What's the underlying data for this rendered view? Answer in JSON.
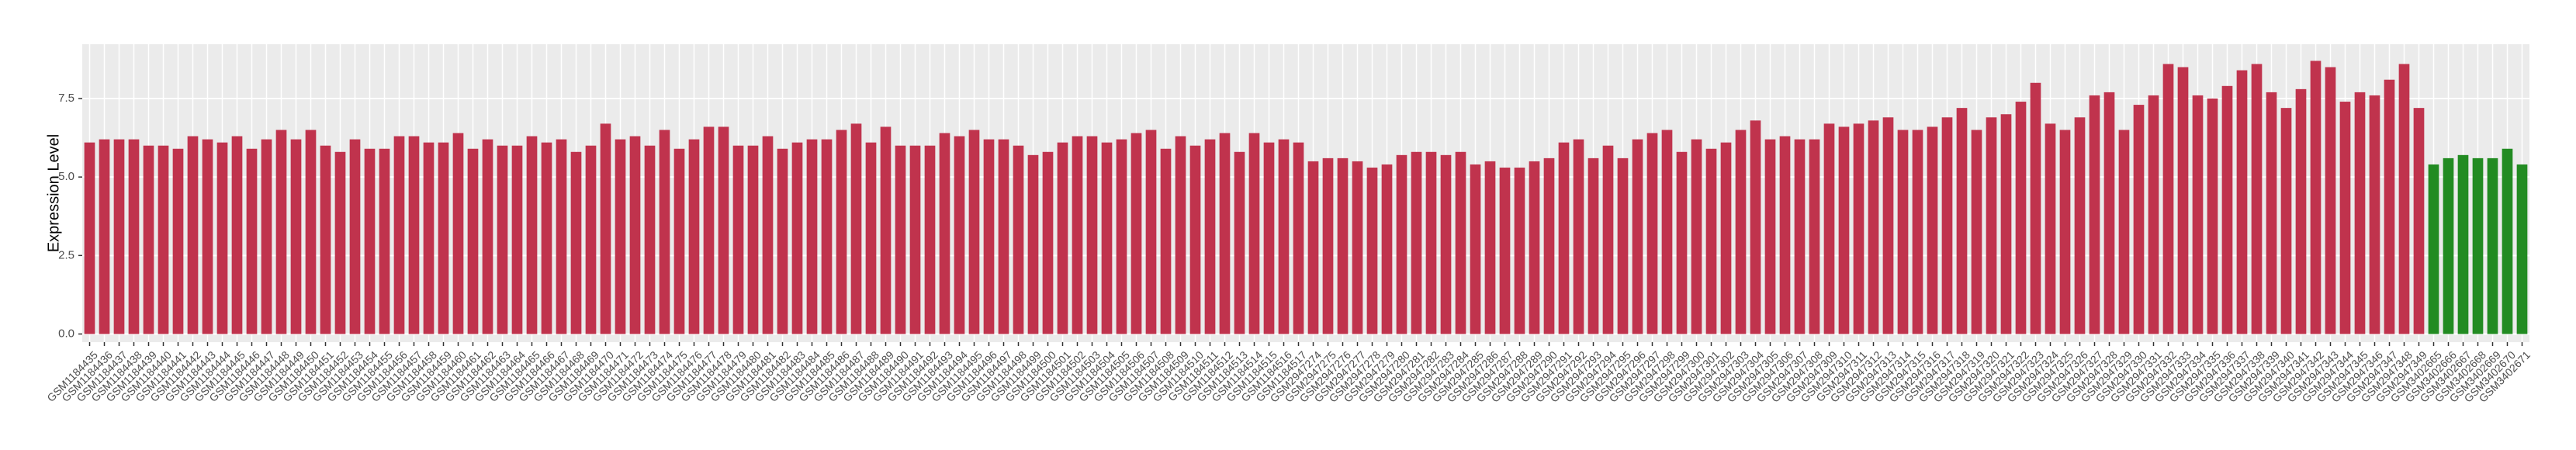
{
  "chart_data": {
    "type": "bar",
    "y_label": "Expression Level",
    "categories": [
      "GSM1184435",
      "GSM1184436",
      "GSM1184437",
      "GSM1184438",
      "GSM1184439",
      "GSM1184440",
      "GSM1184441",
      "GSM1184442",
      "GSM1184443",
      "GSM1184444",
      "GSM1184445",
      "GSM1184446",
      "GSM1184447",
      "GSM1184448",
      "GSM1184449",
      "GSM1184450",
      "GSM1184451",
      "GSM1184452",
      "GSM1184453",
      "GSM1184454",
      "GSM1184455",
      "GSM1184456",
      "GSM1184457",
      "GSM1184458",
      "GSM1184459",
      "GSM1184460",
      "GSM1184461",
      "GSM1184462",
      "GSM1184463",
      "GSM1184464",
      "GSM1184465",
      "GSM1184466",
      "GSM1184467",
      "GSM1184468",
      "GSM1184469",
      "GSM1184470",
      "GSM1184471",
      "GSM1184472",
      "GSM1184473",
      "GSM1184474",
      "GSM1184475",
      "GSM1184476",
      "GSM1184477",
      "GSM1184478",
      "GSM1184479",
      "GSM1184480",
      "GSM1184481",
      "GSM1184482",
      "GSM1184483",
      "GSM1184484",
      "GSM1184485",
      "GSM1184486",
      "GSM1184487",
      "GSM1184488",
      "GSM1184489",
      "GSM1184490",
      "GSM1184491",
      "GSM1184492",
      "GSM1184493",
      "GSM1184494",
      "GSM1184495",
      "GSM1184496",
      "GSM1184497",
      "GSM1184498",
      "GSM1184499",
      "GSM1184500",
      "GSM1184501",
      "GSM1184502",
      "GSM1184503",
      "GSM1184504",
      "GSM1184505",
      "GSM1184506",
      "GSM1184507",
      "GSM1184508",
      "GSM1184509",
      "GSM1184510",
      "GSM1184511",
      "GSM1184512",
      "GSM1184513",
      "GSM1184514",
      "GSM1184515",
      "GSM1184516",
      "GSM1184517",
      "GSM2947274",
      "GSM2947275",
      "GSM2947276",
      "GSM2947277",
      "GSM2947278",
      "GSM2947279",
      "GSM2947280",
      "GSM2947281",
      "GSM2947282",
      "GSM2947283",
      "GSM2947284",
      "GSM2947285",
      "GSM2947286",
      "GSM2947287",
      "GSM2947288",
      "GSM2947289",
      "GSM2947290",
      "GSM2947291",
      "GSM2947292",
      "GSM2947293",
      "GSM2947294",
      "GSM2947295",
      "GSM2947296",
      "GSM2947297",
      "GSM2947298",
      "GSM2947299",
      "GSM2947300",
      "GSM2947301",
      "GSM2947302",
      "GSM2947303",
      "GSM2947304",
      "GSM2947305",
      "GSM2947306",
      "GSM2947307",
      "GSM2947308",
      "GSM2947309",
      "GSM2947310",
      "GSM2947311",
      "GSM2947312",
      "GSM2947313",
      "GSM2947314",
      "GSM2947315",
      "GSM2947316",
      "GSM2947317",
      "GSM2947318",
      "GSM2947319",
      "GSM2947320",
      "GSM2947321",
      "GSM2947322",
      "GSM2947323",
      "GSM2947324",
      "GSM2947325",
      "GSM2947326",
      "GSM2947327",
      "GSM2947328",
      "GSM2947329",
      "GSM2947330",
      "GSM2947331",
      "GSM2947332",
      "GSM2947333",
      "GSM2947334",
      "GSM2947335",
      "GSM2947336",
      "GSM2947337",
      "GSM2947338",
      "GSM2947339",
      "GSM2947340",
      "GSM2947341",
      "GSM2947342",
      "GSM2947343",
      "GSM2947344",
      "GSM2947345",
      "GSM2947346",
      "GSM2947347",
      "GSM2947348",
      "GSM2947349",
      "GSM3402665",
      "GSM3402666",
      "GSM3402667",
      "GSM3402668",
      "GSM3402669",
      "GSM3402670",
      "GSM3402671"
    ],
    "values": [
      6.1,
      6.2,
      6.2,
      6.2,
      6.0,
      6.0,
      5.9,
      6.3,
      6.2,
      6.1,
      6.3,
      5.9,
      6.2,
      6.5,
      6.2,
      6.5,
      6.0,
      5.8,
      6.2,
      5.9,
      5.9,
      6.3,
      6.3,
      6.1,
      6.1,
      6.4,
      5.9,
      6.2,
      6.0,
      6.0,
      6.3,
      6.1,
      6.2,
      5.8,
      6.0,
      6.7,
      6.2,
      6.3,
      6.0,
      6.5,
      5.9,
      6.2,
      6.6,
      6.6,
      6.0,
      6.0,
      6.3,
      5.9,
      6.1,
      6.2,
      6.2,
      6.5,
      6.7,
      6.1,
      6.6,
      6.0,
      6.0,
      6.0,
      6.4,
      6.3,
      6.5,
      6.2,
      6.2,
      6.0,
      5.7,
      5.8,
      6.1,
      6.3,
      6.3,
      6.1,
      6.2,
      6.4,
      6.5,
      5.9,
      6.3,
      6.0,
      6.2,
      6.4,
      5.8,
      6.4,
      6.1,
      6.2,
      6.1,
      5.5,
      5.6,
      5.6,
      5.5,
      5.3,
      5.4,
      5.7,
      5.8,
      5.8,
      5.7,
      5.8,
      5.4,
      5.5,
      5.3,
      5.3,
      5.5,
      5.6,
      6.1,
      6.2,
      5.6,
      6.0,
      5.6,
      6.2,
      6.4,
      6.5,
      5.8,
      6.2,
      5.9,
      6.1,
      6.5,
      6.8,
      6.2,
      6.3,
      6.2,
      6.2,
      6.7,
      6.6,
      6.7,
      6.8,
      6.9,
      6.5,
      6.5,
      6.6,
      6.9,
      7.2,
      6.5,
      6.9,
      7.0,
      7.4,
      8.0,
      6.7,
      6.5,
      6.9,
      7.6,
      7.7,
      6.5,
      7.3,
      7.6,
      8.6,
      8.5,
      7.6,
      7.5,
      7.9,
      8.4,
      8.6,
      7.7,
      7.2,
      7.8,
      8.7,
      8.5,
      7.4,
      7.7,
      7.6,
      8.1,
      8.6,
      7.2,
      5.4,
      5.6,
      5.7,
      5.6,
      5.6,
      5.9,
      5.4
    ],
    "colors": [
      "#c0334d",
      "#c0334d",
      "#c0334d",
      "#c0334d",
      "#c0334d",
      "#c0334d",
      "#c0334d",
      "#c0334d",
      "#c0334d",
      "#c0334d",
      "#c0334d",
      "#c0334d",
      "#c0334d",
      "#c0334d",
      "#c0334d",
      "#c0334d",
      "#c0334d",
      "#c0334d",
      "#c0334d",
      "#c0334d",
      "#c0334d",
      "#c0334d",
      "#c0334d",
      "#c0334d",
      "#c0334d",
      "#c0334d",
      "#c0334d",
      "#c0334d",
      "#c0334d",
      "#c0334d",
      "#c0334d",
      "#c0334d",
      "#c0334d",
      "#c0334d",
      "#c0334d",
      "#c0334d",
      "#c0334d",
      "#c0334d",
      "#c0334d",
      "#c0334d",
      "#c0334d",
      "#c0334d",
      "#c0334d",
      "#c0334d",
      "#c0334d",
      "#c0334d",
      "#c0334d",
      "#c0334d",
      "#c0334d",
      "#c0334d",
      "#c0334d",
      "#c0334d",
      "#c0334d",
      "#c0334d",
      "#c0334d",
      "#c0334d",
      "#c0334d",
      "#c0334d",
      "#c0334d",
      "#c0334d",
      "#c0334d",
      "#c0334d",
      "#c0334d",
      "#c0334d",
      "#c0334d",
      "#c0334d",
      "#c0334d",
      "#c0334d",
      "#c0334d",
      "#c0334d",
      "#c0334d",
      "#c0334d",
      "#c0334d",
      "#c0334d",
      "#c0334d",
      "#c0334d",
      "#c0334d",
      "#c0334d",
      "#c0334d",
      "#c0334d",
      "#c0334d",
      "#c0334d",
      "#c0334d",
      "#c0334d",
      "#c0334d",
      "#c0334d",
      "#c0334d",
      "#c0334d",
      "#c0334d",
      "#c0334d",
      "#c0334d",
      "#c0334d",
      "#c0334d",
      "#c0334d",
      "#c0334d",
      "#c0334d",
      "#c0334d",
      "#c0334d",
      "#c0334d",
      "#c0334d",
      "#c0334d",
      "#c0334d",
      "#c0334d",
      "#c0334d",
      "#c0334d",
      "#c0334d",
      "#c0334d",
      "#c0334d",
      "#c0334d",
      "#c0334d",
      "#c0334d",
      "#c0334d",
      "#c0334d",
      "#c0334d",
      "#c0334d",
      "#c0334d",
      "#c0334d",
      "#c0334d",
      "#c0334d",
      "#c0334d",
      "#c0334d",
      "#c0334d",
      "#c0334d",
      "#c0334d",
      "#c0334d",
      "#c0334d",
      "#c0334d",
      "#c0334d",
      "#c0334d",
      "#c0334d",
      "#c0334d",
      "#c0334d",
      "#c0334d",
      "#c0334d",
      "#c0334d",
      "#c0334d",
      "#c0334d",
      "#c0334d",
      "#c0334d",
      "#c0334d",
      "#c0334d",
      "#c0334d",
      "#c0334d",
      "#c0334d",
      "#c0334d",
      "#c0334d",
      "#c0334d",
      "#c0334d",
      "#c0334d",
      "#c0334d",
      "#c0334d",
      "#c0334d",
      "#c0334d",
      "#c0334d",
      "#c0334d",
      "#c0334d",
      "#c0334d",
      "#c0334d",
      "#c0334d",
      "#228b22",
      "#228b22",
      "#228b22",
      "#228b22",
      "#228b22",
      "#228b22",
      "#228b22"
    ],
    "ylim": [
      -0.26,
      9.23
    ],
    "yticks": [
      {
        "value": 0,
        "label": "0.0"
      },
      2.5,
      {
        "value": 5,
        "label": "5.0"
      },
      7.5
    ],
    "grid": true
  }
}
